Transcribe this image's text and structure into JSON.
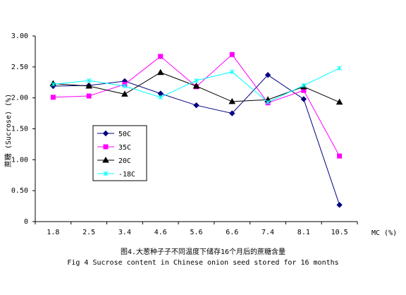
{
  "chart_data": {
    "type": "line",
    "categories": [
      "1.8",
      "2.5",
      "3.4",
      "4.6",
      "5.6",
      "6.6",
      "7.4",
      "8.1",
      "10.5"
    ],
    "y_ticks": [
      "3.00",
      "2.50",
      "2.00",
      "1.50",
      "1.00",
      "0.50",
      "0"
    ],
    "ylim": [
      0,
      3
    ],
    "xlabel": "MC (%)",
    "ylabel": "蔗糖 (Sucrose) (%)",
    "caption_cn": "图4.大葱种子子不同温度下储存16个月后的蔗糖含量",
    "caption_en": "Fig 4 Sucrose content in Chinese onion seed stored for 16 months",
    "series": [
      {
        "name": "50C",
        "color": "#000080",
        "marker": "diamond",
        "values": [
          2.19,
          2.2,
          2.27,
          2.07,
          1.88,
          1.75,
          2.37,
          1.98,
          0.27
        ]
      },
      {
        "name": "35C",
        "color": "#ff00ff",
        "marker": "square",
        "values": [
          2.01,
          2.03,
          2.22,
          2.67,
          2.18,
          2.7,
          1.92,
          2.12,
          1.06
        ]
      },
      {
        "name": "20C",
        "color": "#000000",
        "marker": "triangle",
        "values": [
          2.23,
          2.19,
          2.06,
          2.41,
          2.19,
          1.94,
          1.97,
          2.18,
          1.93
        ]
      },
      {
        "name": "-18C",
        "color": "#00ffff",
        "marker": "x",
        "values": [
          2.22,
          2.28,
          2.19,
          2.01,
          2.28,
          2.42,
          1.93,
          2.2,
          2.48
        ]
      }
    ],
    "grid": false,
    "legend_position": "left"
  }
}
